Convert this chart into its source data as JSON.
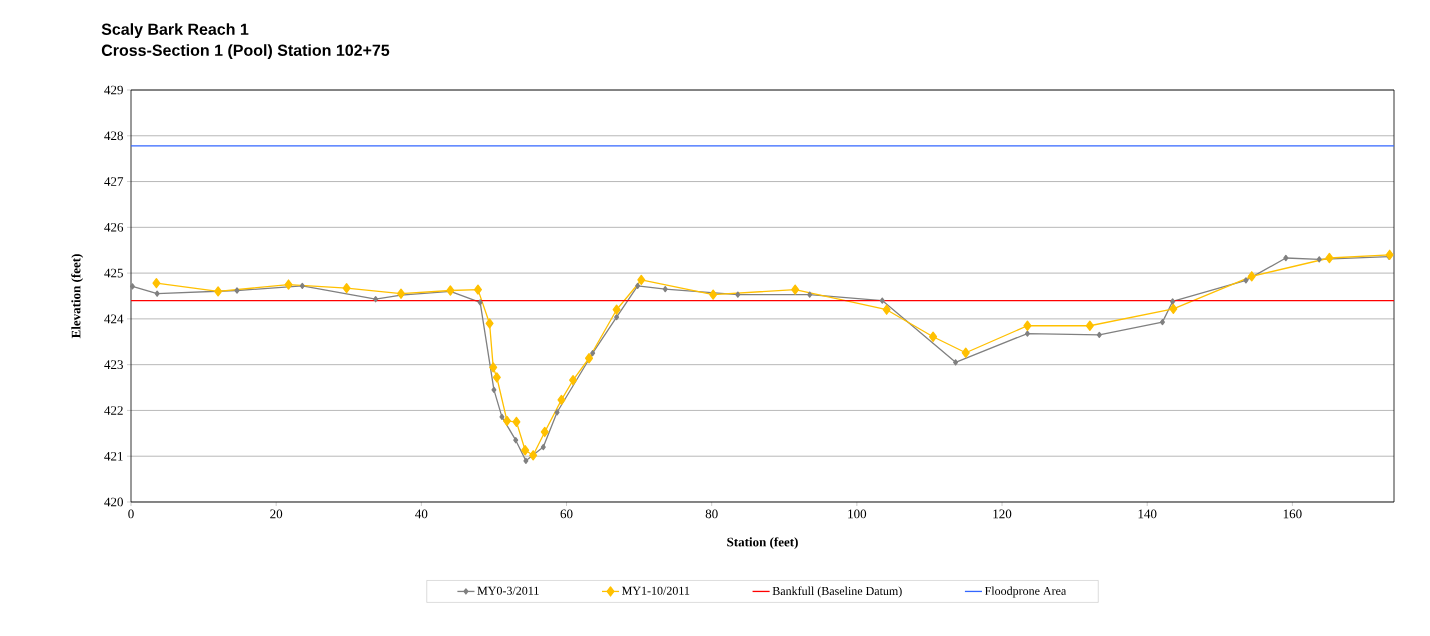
{
  "chart_data": {
    "type": "line",
    "title": "Scaly Bark Reach 1",
    "subtitle": "Cross-Section 1 (Pool) Station 102+75",
    "xlabel": "Station (feet)",
    "ylabel": "Elevation (feet)",
    "xlim": [
      0,
      174
    ],
    "xticks": [
      0,
      20,
      40,
      60,
      80,
      100,
      120,
      140,
      160
    ],
    "ylim": [
      420,
      429
    ],
    "yticks": [
      420,
      421,
      422,
      423,
      424,
      425,
      426,
      427,
      428,
      429
    ],
    "grid": "y",
    "legend": "bottom",
    "marker": "diamond",
    "line_style": "solid",
    "series": [
      {
        "name": "MY0-3/2011",
        "color": "#808080",
        "x": [
          0.2,
          3.6,
          14.6,
          23.6,
          33.7,
          37.2,
          44.0,
          48.1,
          50.0,
          51.1,
          53.0,
          54.4,
          56.8,
          58.7,
          63.6,
          66.9,
          69.8,
          73.6,
          83.6,
          93.5,
          103.5,
          113.6,
          123.5,
          133.4,
          142.1,
          143.5,
          153.6,
          159.1,
          163.7,
          173.3
        ],
        "values": [
          424.71,
          424.55,
          424.62,
          424.72,
          424.43,
          424.52,
          424.6,
          424.36,
          422.45,
          421.86,
          421.35,
          420.9,
          421.2,
          421.96,
          423.25,
          424.04,
          424.72,
          424.65,
          424.53,
          424.53,
          424.4,
          423.05,
          423.68,
          423.65,
          423.93,
          424.38,
          424.84,
          425.33,
          425.3,
          425.36
        ]
      },
      {
        "name": "MY1-10/2011",
        "color": "#ffc000",
        "x": [
          3.5,
          12.0,
          21.7,
          29.7,
          37.2,
          44.0,
          47.8,
          49.4,
          49.9,
          50.4,
          51.8,
          53.1,
          54.3,
          55.4,
          57.0,
          59.3,
          60.9,
          63.1,
          66.9,
          70.3,
          80.2,
          91.5,
          104.1,
          110.5,
          115.0,
          123.5,
          132.1,
          143.6,
          154.4,
          165.1,
          173.4
        ],
        "values": [
          424.78,
          424.6,
          424.75,
          424.67,
          424.55,
          424.62,
          424.64,
          423.9,
          422.94,
          422.72,
          421.77,
          421.75,
          421.13,
          421.02,
          421.53,
          422.23,
          422.66,
          423.14,
          424.2,
          424.85,
          424.53,
          424.64,
          424.2,
          423.61,
          423.26,
          423.85,
          423.85,
          424.22,
          424.93,
          425.33,
          425.4
        ]
      }
    ],
    "ref_lines": [
      {
        "axis": "y",
        "value": 424.4,
        "label": "Bankfull (Baseline Datum)",
        "color": "#ff0000"
      },
      {
        "axis": "y",
        "value": 427.78,
        "label": "Floodprone Area",
        "color": "#3366ff"
      }
    ]
  }
}
